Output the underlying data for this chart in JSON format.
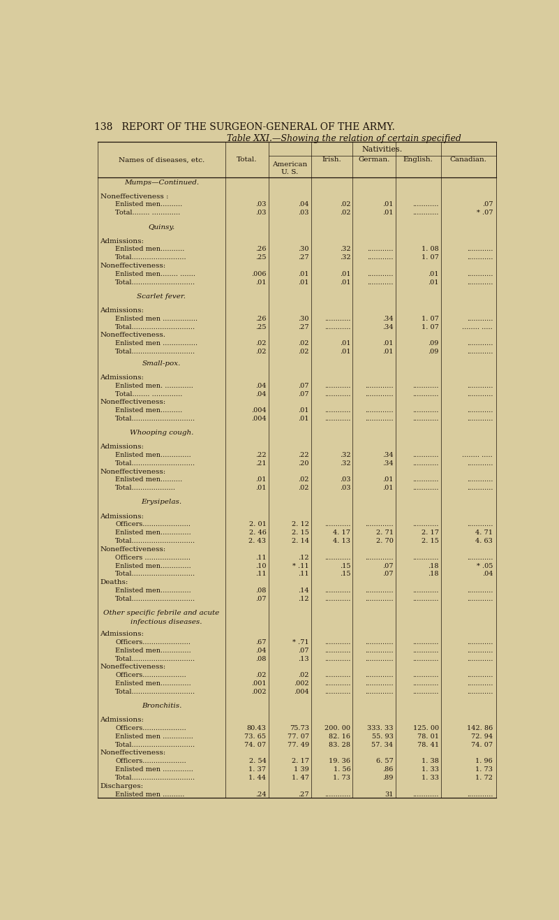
{
  "page_header": "138   REPORT OF THE SURGEON-GENERAL OF THE ARMY.",
  "table_title": "Table XXI.—Showing the relation of certain specified",
  "bg_color": "#d9cc9e",
  "text_color": "#1a1008",
  "col_headers_line1": [
    "Names of diseases, etc.",
    "Total.",
    "American",
    "Irish.",
    "German.",
    "English.",
    "Canadian."
  ],
  "col_headers_line2": [
    "",
    "",
    "U. S.",
    "",
    "",
    "",
    ""
  ],
  "col_header_group": "Nativities.",
  "rows": [
    {
      "text": "Mumps—Continued.",
      "type": "section"
    },
    {
      "text": "",
      "type": "spacer"
    },
    {
      "text": "Noneffectiveness :",
      "type": "label"
    },
    {
      "text": "Enlisted men..........",
      "indent": 1,
      "total": ".03",
      "american": ".04",
      "irish": ".02",
      "german": ".01",
      "english": "............",
      "canadian": ".07",
      "type": "data"
    },
    {
      "text": "Total........ .............",
      "indent": 1,
      "total": ".03",
      "american": ".03",
      "irish": ".02",
      "german": ".01",
      "english": "............",
      "canadian": "* .07",
      "type": "data"
    },
    {
      "text": "",
      "type": "spacer"
    },
    {
      "text": "Quinsy.",
      "type": "section"
    },
    {
      "text": "",
      "type": "spacer"
    },
    {
      "text": "Admissions:",
      "type": "label"
    },
    {
      "text": "Enlisted men...........",
      "indent": 1,
      "total": ".26",
      "american": ".30",
      "irish": ".32",
      "german": "............",
      "english": "1. 08",
      "canadian": "............",
      "type": "data"
    },
    {
      "text": "Total.........................",
      "indent": 1,
      "total": ".25",
      "american": ".27",
      "irish": ".32",
      "german": "............",
      "english": "1. 07",
      "canadian": "............",
      "type": "data"
    },
    {
      "text": "Noneffectiveness:",
      "type": "label"
    },
    {
      "text": "Enlisted men........ .......",
      "indent": 1,
      "total": ".006",
      "american": ".01",
      "irish": ".01",
      "german": "............",
      "english": ".01",
      "canadian": "............",
      "type": "data"
    },
    {
      "text": "Total.............................",
      "indent": 1,
      "total": ".01",
      "american": ".01",
      "irish": ".01",
      "german": "............",
      "english": ".01",
      "canadian": "............",
      "type": "data"
    },
    {
      "text": "",
      "type": "spacer"
    },
    {
      "text": "Scarlet fever.",
      "type": "section"
    },
    {
      "text": "",
      "type": "spacer"
    },
    {
      "text": "Admissions:",
      "type": "label"
    },
    {
      "text": "Enlisted men ................",
      "indent": 1,
      "total": ".26",
      "american": ".30",
      "irish": "............",
      "german": ".34",
      "english": "1. 07",
      "canadian": "............",
      "type": "data"
    },
    {
      "text": "Total.............................",
      "indent": 1,
      "total": ".25",
      "american": ".27",
      "irish": "............",
      "german": ".34",
      "english": "1. 07",
      "canadian": "........ .....",
      "type": "data"
    },
    {
      "text": "Noneffectiveness.",
      "type": "label"
    },
    {
      "text": "Enlisted men ................",
      "indent": 1,
      "total": ".02",
      "american": ".02",
      "irish": ".01",
      "german": ".01",
      "english": ".09",
      "canadian": "............",
      "type": "data"
    },
    {
      "text": "Total.............................",
      "indent": 1,
      "total": ".02",
      "american": ".02",
      "irish": ".01",
      "german": ".01",
      "english": ".09",
      "canadian": "............",
      "type": "data"
    },
    {
      "text": "",
      "type": "spacer_small"
    },
    {
      "text": "Small-pox.",
      "type": "section"
    },
    {
      "text": "",
      "type": "spacer"
    },
    {
      "text": "Admissions:",
      "type": "label"
    },
    {
      "text": "Enlisted men. .............",
      "indent": 1,
      "total": ".04",
      "american": ".07",
      "irish": "............",
      "german": ".............",
      "english": "............",
      "canadian": "............",
      "type": "data"
    },
    {
      "text": "Total........ ..............",
      "indent": 1,
      "total": ".04",
      "american": ".07",
      "irish": "............",
      "german": ".............",
      "english": "............",
      "canadian": "............",
      "type": "data"
    },
    {
      "text": "Noneffectiveness:",
      "type": "label"
    },
    {
      "text": "Enlisted men..........",
      "indent": 1,
      "total": ".004",
      "american": ".01",
      "irish": "............",
      "german": ".............",
      "english": "............",
      "canadian": "............",
      "type": "data"
    },
    {
      "text": "Total.............................",
      "indent": 1,
      "total": ".004",
      "american": ".01",
      "irish": "............",
      "german": ".............",
      "english": "............",
      "canadian": "............",
      "type": "data"
    },
    {
      "text": "",
      "type": "spacer"
    },
    {
      "text": "Whooping cough.",
      "type": "section"
    },
    {
      "text": "",
      "type": "spacer"
    },
    {
      "text": "Admissions:",
      "type": "label"
    },
    {
      "text": "Enlisted men..............",
      "indent": 1,
      "total": ".22",
      "american": ".22",
      "irish": ".32",
      "german": ".34",
      "english": "............",
      "canadian": "........ .....",
      "type": "data"
    },
    {
      "text": "Total.............................",
      "indent": 1,
      "total": ".21",
      "american": ".20",
      "irish": ".32",
      "german": ".34",
      "english": "............",
      "canadian": "............",
      "type": "data"
    },
    {
      "text": "Noneffectiveness:",
      "type": "label"
    },
    {
      "text": "Enlisted men..........",
      "indent": 1,
      "total": ".01",
      "american": ".02",
      "irish": ".03",
      "german": ".01",
      "english": "............",
      "canadian": "............",
      "type": "data"
    },
    {
      "text": "Total....................",
      "indent": 1,
      "total": ".01",
      "american": ".02",
      "irish": ".03",
      "german": ".01",
      "english": "............",
      "canadian": "............",
      "type": "data"
    },
    {
      "text": "",
      "type": "spacer"
    },
    {
      "text": "Erysipelas.",
      "type": "section"
    },
    {
      "text": "",
      "type": "spacer"
    },
    {
      "text": "Admissions:",
      "type": "label"
    },
    {
      "text": "Officers......................",
      "indent": 1,
      "total": "2. 01",
      "american": "2. 12",
      "irish": "............",
      "german": ".............",
      "english": "............",
      "canadian": "............",
      "type": "data"
    },
    {
      "text": "Enlisted men..............",
      "indent": 1,
      "total": "2. 46",
      "american": "2. 15",
      "irish": "4. 17",
      "german": "2. 71",
      "english": "2. 17",
      "canadian": "4. 71",
      "type": "data"
    },
    {
      "text": "Total.............................",
      "indent": 1,
      "total": "2. 43",
      "american": "2. 14",
      "irish": "4. 13",
      "german": "2. 70",
      "english": "2. 15",
      "canadian": "4. 63",
      "type": "data"
    },
    {
      "text": "Noneffectiveness:",
      "type": "label"
    },
    {
      "text": "Officers .....................",
      "indent": 1,
      "total": ".11",
      "american": ".12",
      "irish": "............",
      "german": ".............",
      "english": "............",
      "canadian": "............",
      "type": "data"
    },
    {
      "text": "Enlisted men..............",
      "indent": 1,
      "total": ".10",
      "american": "* .11",
      "irish": ".15",
      "german": ".07",
      "english": ".18",
      "canadian": "* .05",
      "type": "data"
    },
    {
      "text": "Total.............................",
      "indent": 1,
      "total": ".11",
      "american": ".11",
      "irish": ".15",
      "german": ".07",
      "english": ".18",
      "canadian": ".04",
      "type": "data"
    },
    {
      "text": "Deaths:",
      "type": "label"
    },
    {
      "text": "Enlisted men..............",
      "indent": 1,
      "total": ".08",
      "american": ".14",
      "irish": "............",
      "german": ".............",
      "english": "............",
      "canadian": "............",
      "type": "data"
    },
    {
      "text": "Total.............................",
      "indent": 1,
      "total": ".07",
      "american": ".12",
      "irish": "............",
      "german": ".............",
      "english": "............",
      "canadian": "............",
      "type": "data"
    },
    {
      "text": "",
      "type": "spacer"
    },
    {
      "text": "Other specific febrile and acute",
      "type": "section"
    },
    {
      "text": "    infectious diseases.",
      "type": "section_cont"
    },
    {
      "text": "",
      "type": "spacer"
    },
    {
      "text": "Admissions:",
      "type": "label"
    },
    {
      "text": "Officers......................",
      "indent": 1,
      "total": ".67",
      "american": "* .71",
      "irish": "............",
      "german": ".............",
      "english": "............",
      "canadian": "............",
      "type": "data"
    },
    {
      "text": "Enlisted men..............",
      "indent": 1,
      "total": ".04",
      "american": ".07",
      "irish": "............",
      "german": ".............",
      "english": "............",
      "canadian": "............",
      "type": "data"
    },
    {
      "text": "Total.............................",
      "indent": 1,
      "total": ".08",
      "american": ".13",
      "irish": "............",
      "german": ".............",
      "english": "............",
      "canadian": "............",
      "type": "data"
    },
    {
      "text": "Noneffectiveness:",
      "type": "label"
    },
    {
      "text": "Officers....................",
      "indent": 1,
      "total": ".02",
      "american": ".02",
      "irish": "............",
      "german": ".............",
      "english": "............",
      "canadian": "............",
      "type": "data"
    },
    {
      "text": "Enlisted men..............",
      "indent": 1,
      "total": ".001",
      "american": ".002",
      "irish": "............",
      "german": ".............",
      "english": "............",
      "canadian": "............",
      "type": "data"
    },
    {
      "text": "Total.............................",
      "indent": 1,
      "total": ".002",
      "american": ".004",
      "irish": "............",
      "german": ".............",
      "english": "............",
      "canadian": "............",
      "type": "data"
    },
    {
      "text": "",
      "type": "spacer"
    },
    {
      "text": "Bronchitis.",
      "type": "section"
    },
    {
      "text": "",
      "type": "spacer"
    },
    {
      "text": "Admissions:",
      "type": "label"
    },
    {
      "text": "Officers....................",
      "indent": 1,
      "total": "80.43",
      "american": "75.73",
      "irish": "200. 00",
      "german": "333. 33",
      "english": "125. 00",
      "canadian": "142. 86",
      "type": "data"
    },
    {
      "text": "Enlisted men ..............",
      "indent": 1,
      "total": "73. 65",
      "american": "77. 07",
      "irish": "82. 16",
      "german": "55. 93",
      "english": "78. 01",
      "canadian": "72. 94",
      "type": "data"
    },
    {
      "text": "Total.............................",
      "indent": 1,
      "total": "74. 07",
      "american": "77. 49",
      "irish": "83. 28",
      "german": "57. 34",
      "english": "78. 41",
      "canadian": "74. 07",
      "type": "data"
    },
    {
      "text": "Noneffectiveness:",
      "type": "label"
    },
    {
      "text": "Officers....................",
      "indent": 1,
      "total": "2. 54",
      "american": "2. 17",
      "irish": "19. 36",
      "german": "6. 57",
      "english": "1. 38",
      "canadian": "1. 96",
      "type": "data"
    },
    {
      "text": "Enlisted men ..............",
      "indent": 1,
      "total": "1. 37",
      "american": "1 39",
      "irish": "1. 56",
      "german": ".86",
      "english": "1. 33",
      "canadian": "1. 73",
      "type": "data"
    },
    {
      "text": "Total.............................",
      "indent": 1,
      "total": "1. 44",
      "american": "1. 47",
      "irish": "1. 73",
      "german": ".89",
      "english": "1. 33",
      "canadian": "1. 72",
      "type": "data"
    },
    {
      "text": "Discharges:",
      "type": "label"
    },
    {
      "text": "Enlisted men ..........",
      "indent": 1,
      "total": ".24",
      "american": ".27",
      "irish": "............",
      "german": "31",
      "english": "............",
      "canadian": "............",
      "type": "data"
    }
  ]
}
